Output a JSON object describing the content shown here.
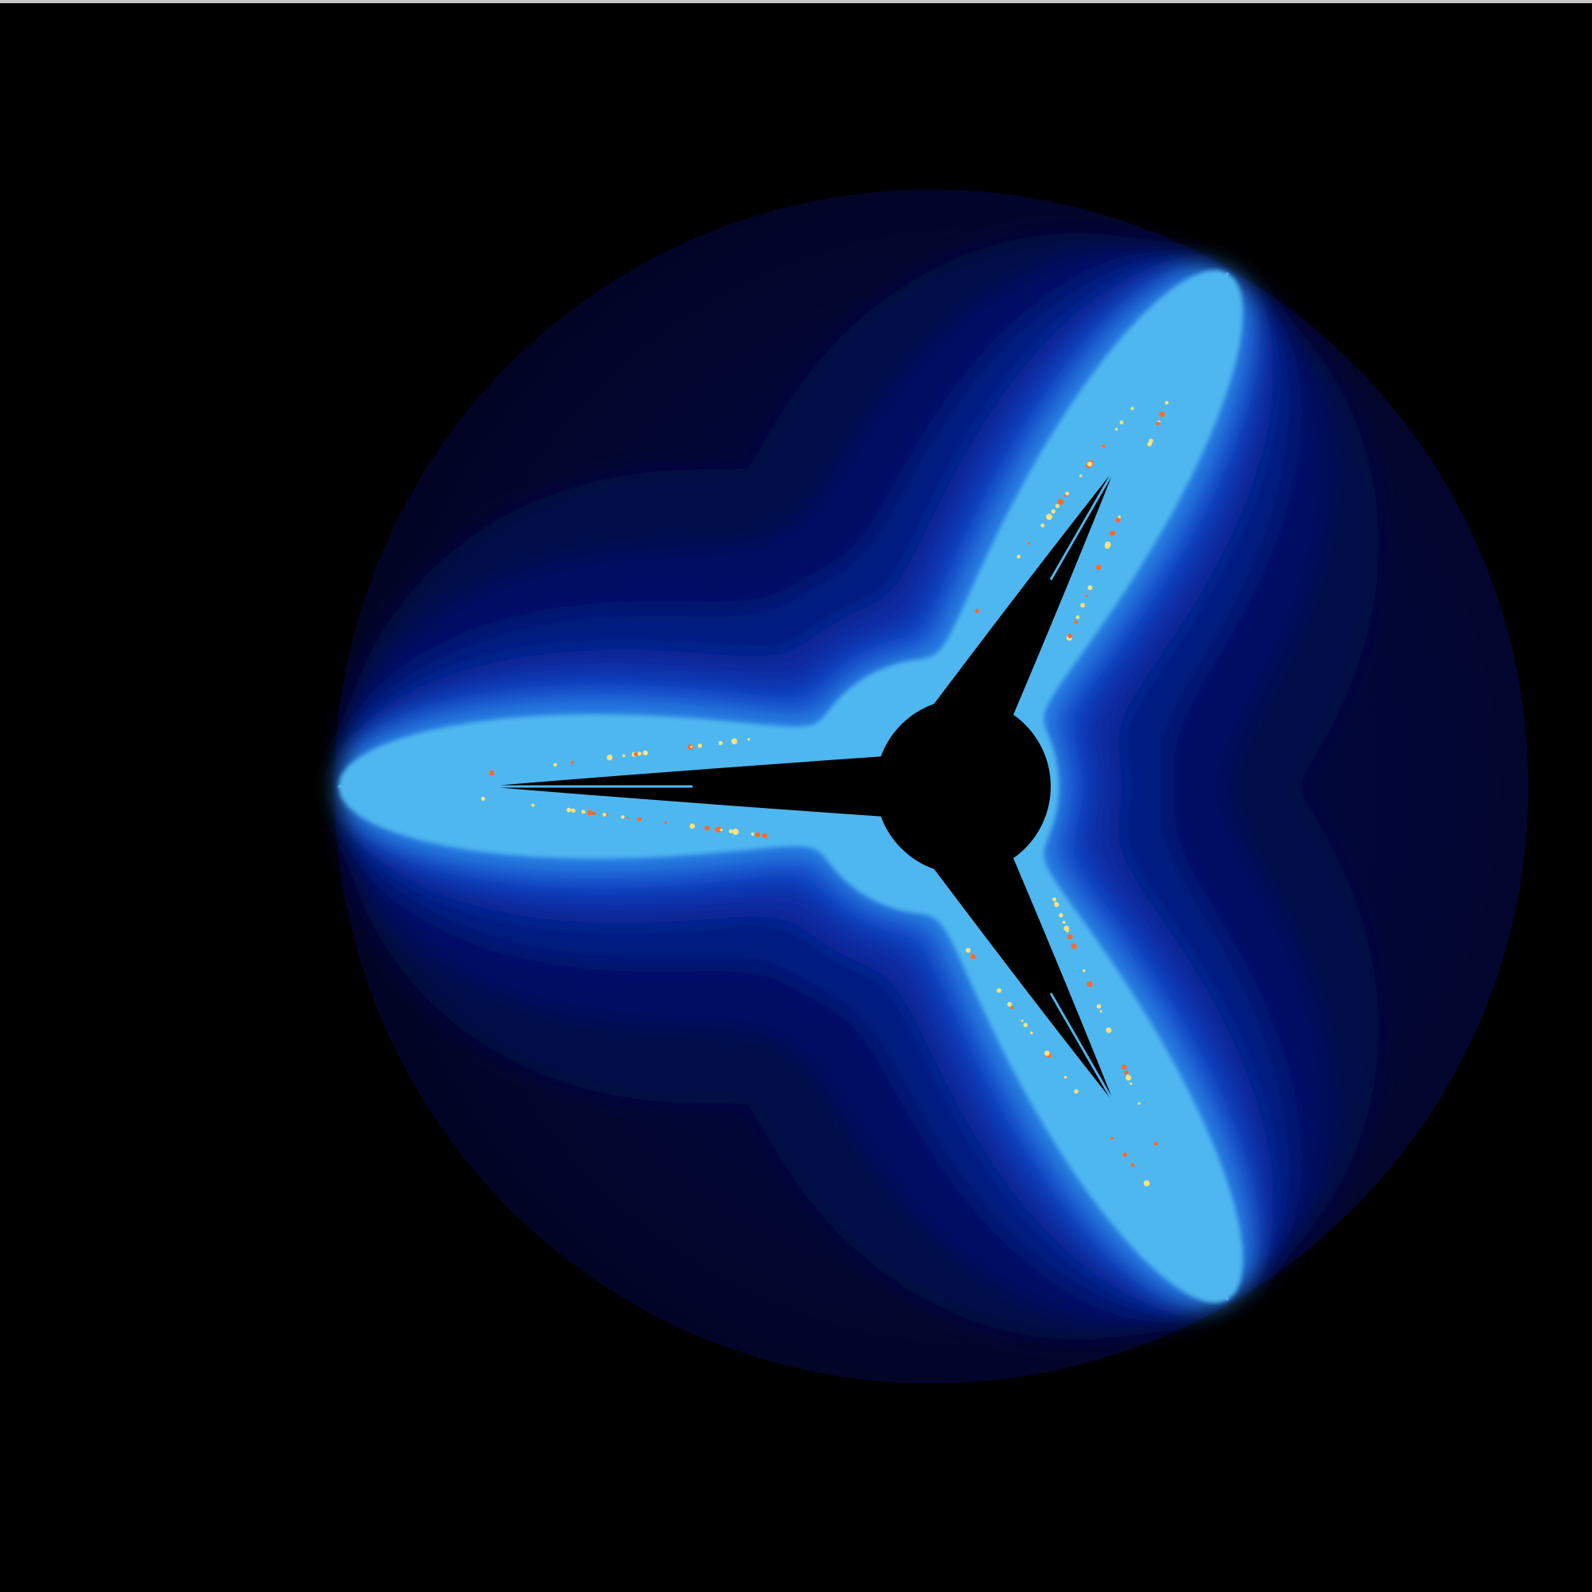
{
  "colors": {
    "background": "#000000",
    "top_edge": "#c8c8c8",
    "bands": [
      "#020424",
      "#020633",
      "#030a4a",
      "#041063",
      "#061a80",
      "#0a2aa2",
      "#1040c0",
      "#1b5fd6",
      "#2a86e6",
      "#4fb7f0"
    ],
    "edge_highlight": "#ffe27a",
    "edge_hot": "#ff6a2a",
    "interior": "#000000"
  },
  "image": {
    "subject": "fractal-set",
    "symmetry": "three-fold"
  }
}
